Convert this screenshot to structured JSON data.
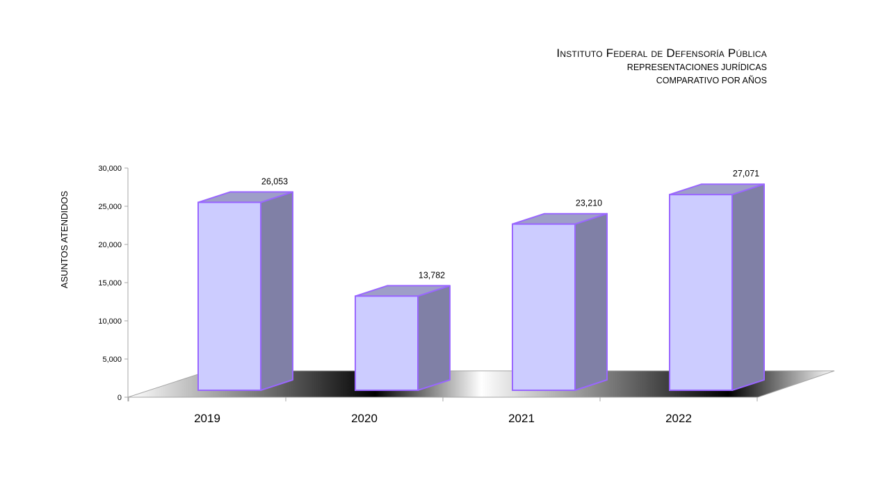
{
  "chart_data": {
    "type": "bar",
    "title": "Instituto Federal de Defensoría Pública",
    "subtitles": [
      "REPRESENTACIONES JURÍDICAS",
      "COMPARATIVO POR AÑOS"
    ],
    "ylabel": "ASUNTOS ATENDIDOS",
    "xlabel": "",
    "categories": [
      "2019",
      "2020",
      "2021",
      "2022"
    ],
    "values": [
      26053,
      13782,
      23210,
      27071
    ],
    "value_labels": [
      "26,053",
      "13,782",
      "23,210",
      "27,071"
    ],
    "ylim": [
      0,
      30000
    ],
    "yticks": [
      0,
      5000,
      10000,
      15000,
      20000,
      25000,
      30000
    ],
    "ytick_labels": [
      "0",
      "5,000",
      "10,000",
      "15,000",
      "20,000",
      "25,000",
      "30,000"
    ],
    "grid": false,
    "legend": "none",
    "style": "3d-column",
    "colors": {
      "bar_front": "#ccccff",
      "bar_side": "#8080a6",
      "bar_top": "#9e9ec8",
      "bar_edge": "#9966ff",
      "floor_shadow": "#1a1a1a",
      "axis": "#a6a6a6"
    }
  }
}
